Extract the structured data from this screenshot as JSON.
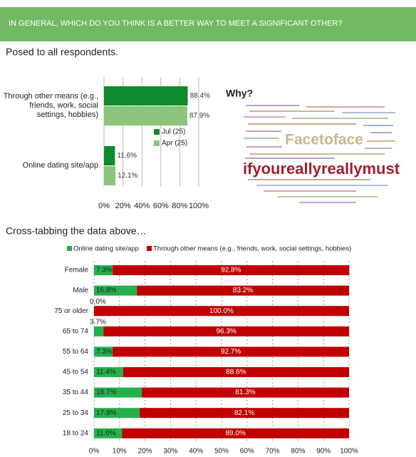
{
  "header": "IN GENERAL, WHICH DO YOU THINK IS A BETTER WAY TO MEET A SIGNIFICANT OTHER?",
  "subtitle": "Posed to all respondents.",
  "section_title": "Cross-tabbing the data above…",
  "word_cloud": {
    "title": "Why?",
    "words": [
      "Facetoface",
      "ifyoureallyreallymust"
    ]
  },
  "chart_data": [
    {
      "type": "bar",
      "horizontal": true,
      "categories": [
        "Through other means (e.g., friends, work, social settings, hobbies)",
        "Online dating site/app"
      ],
      "series": [
        {
          "name": "Jul (25)",
          "color": "#0f8a2f",
          "values": [
            88.4,
            11.6
          ],
          "value_labels": [
            "88.4%",
            "11.6%"
          ]
        },
        {
          "name": "Apr (25)",
          "color": "#8cc47a",
          "values": [
            87.9,
            12.1
          ],
          "value_labels": [
            "87.9%",
            "12.1%"
          ]
        }
      ],
      "xlim": [
        0,
        100
      ],
      "xticks": [
        {
          "value": 0,
          "label": "0%"
        },
        {
          "value": 20,
          "label": "20%"
        },
        {
          "value": 40,
          "label": "40%"
        },
        {
          "value": 60,
          "label": "60%"
        },
        {
          "value": 80,
          "label": "80%"
        },
        {
          "value": 100,
          "label": "100%"
        }
      ],
      "grid": true,
      "legend": "right"
    },
    {
      "type": "bar",
      "horizontal": true,
      "stacked": true,
      "categories": [
        "Female",
        "Male",
        "75 or older",
        "65 to 74",
        "55 to 64",
        "45 to 54",
        "35 to 44",
        "25 to 34",
        "18 to 24"
      ],
      "series": [
        {
          "name": "Online dating site/app",
          "color": "#22b14c",
          "values": [
            7.3,
            16.8,
            0.0,
            3.7,
            7.3,
            11.4,
            18.7,
            17.9,
            11.0
          ],
          "value_labels": [
            "7.3%",
            "16.8%",
            "0.0%",
            "3.7%",
            "7.3%",
            "11.4%",
            "18.7%",
            "17.9%",
            "11.0%"
          ]
        },
        {
          "name": "Through other means (e.g., friends, work, social settings, hobbies)",
          "color": "#c00000",
          "values": [
            92.8,
            83.2,
            100.0,
            96.3,
            92.7,
            88.6,
            81.3,
            82.1,
            89.0
          ],
          "value_labels": [
            "92.8%",
            "83.2%",
            "100.0%",
            "96.3%",
            "92.7%",
            "88.6%",
            "81.3%",
            "82.1%",
            "89.0%"
          ]
        }
      ],
      "xlim": [
        0,
        100
      ],
      "xticks": [
        {
          "value": 0,
          "label": "0%"
        },
        {
          "value": 10,
          "label": "10%"
        },
        {
          "value": 20,
          "label": "20%"
        },
        {
          "value": 30,
          "label": "30%"
        },
        {
          "value": 40,
          "label": "40%"
        },
        {
          "value": 50,
          "label": "50%"
        },
        {
          "value": 60,
          "label": "60%"
        },
        {
          "value": 70,
          "label": "70%"
        },
        {
          "value": 80,
          "label": "80%"
        },
        {
          "value": 90,
          "label": "90%"
        },
        {
          "value": 100,
          "label": "100%"
        }
      ],
      "grid": true,
      "legend": "top"
    }
  ]
}
